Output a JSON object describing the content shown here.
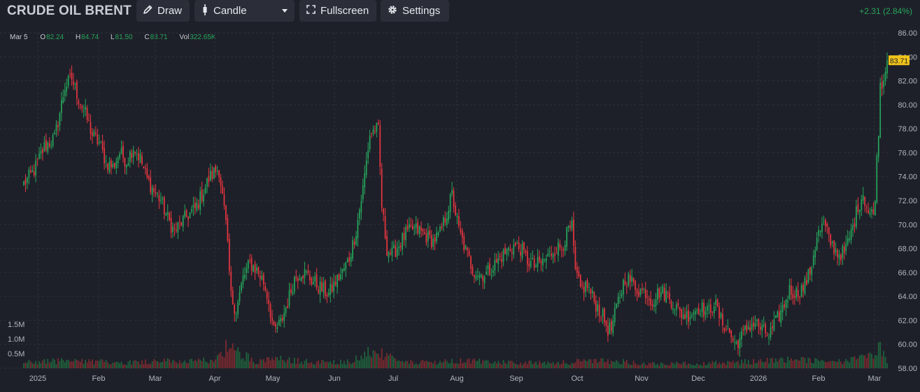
{
  "header": {
    "symbol": "CRUDE OIL BRENT",
    "draw_label": "Draw",
    "chart_type_label": "Candle",
    "fullscreen_label": "Fullscreen",
    "settings_label": "Settings",
    "change_text": "+2.31 (2.84%)"
  },
  "legend": {
    "date": "Mar 5",
    "o_label": "O",
    "o_value": "82.24",
    "h_label": "H",
    "h_value": "84.74",
    "l_label": "L",
    "l_value": "81.50",
    "c_label": "C",
    "c_value": "83.71",
    "vol_label": "Vol",
    "vol_value": "322.65K"
  },
  "colors": {
    "up": "#26a65b",
    "down": "#e8363f",
    "background": "#1e2029",
    "price_tag": "#f0c419"
  },
  "icons": [
    "pencil-icon",
    "candle-icon",
    "fullscreen-icon",
    "gear-icon",
    "chevron-down-icon"
  ],
  "chart_data": {
    "type": "candlestick",
    "ylim": [
      58,
      86
    ],
    "price_ticks": [
      "86.00",
      "84.00",
      "82.00",
      "80.00",
      "78.00",
      "76.00",
      "74.00",
      "72.00",
      "70.00",
      "68.00",
      "66.00",
      "64.00",
      "62.00",
      "60.00",
      "58.00"
    ],
    "volume_ticks": [
      "1.5M",
      "1.0M",
      "0.5M"
    ],
    "time_labels": [
      "2025",
      "Feb",
      "Mar",
      "Apr",
      "May",
      "Jun",
      "Jul",
      "Aug",
      "Sep",
      "Oct",
      "Nov",
      "Dec",
      "2026",
      "Feb",
      "Mar"
    ],
    "last_price": "83.71",
    "close_anchors": [
      [
        0,
        73.4
      ],
      [
        6,
        74.5
      ],
      [
        12,
        76.5
      ],
      [
        18,
        77.2
      ],
      [
        24,
        81.5
      ],
      [
        28,
        82.2
      ],
      [
        32,
        80.5
      ],
      [
        36,
        79.2
      ],
      [
        40,
        77.5
      ],
      [
        44,
        76.8
      ],
      [
        48,
        75.2
      ],
      [
        52,
        74.8
      ],
      [
        56,
        76.0
      ],
      [
        60,
        75.3
      ],
      [
        64,
        76.5
      ],
      [
        68,
        75.5
      ],
      [
        72,
        73.8
      ],
      [
        76,
        72.8
      ],
      [
        80,
        72.0
      ],
      [
        84,
        70.5
      ],
      [
        88,
        69.4
      ],
      [
        92,
        70.2
      ],
      [
        96,
        70.8
      ],
      [
        100,
        71.3
      ],
      [
        104,
        72.5
      ],
      [
        108,
        73.8
      ],
      [
        112,
        74.5
      ],
      [
        114,
        74.6
      ],
      [
        118,
        70.0
      ],
      [
        121,
        64.0
      ],
      [
        124,
        62.8
      ],
      [
        128,
        65.5
      ],
      [
        132,
        66.8
      ],
      [
        136,
        66.2
      ],
      [
        140,
        65.2
      ],
      [
        143,
        63.6
      ],
      [
        146,
        61.0
      ],
      [
        150,
        61.8
      ],
      [
        154,
        63.5
      ],
      [
        158,
        65.5
      ],
      [
        162,
        66.1
      ],
      [
        166,
        65.7
      ],
      [
        170,
        65.1
      ],
      [
        174,
        64.6
      ],
      [
        178,
        64.2
      ],
      [
        182,
        65.2
      ],
      [
        186,
        66.0
      ],
      [
        190,
        67.2
      ],
      [
        194,
        69.5
      ],
      [
        198,
        73.0
      ],
      [
        202,
        77.5
      ],
      [
        205,
        78.0
      ],
      [
        207,
        77.8
      ],
      [
        209,
        71.5
      ],
      [
        212,
        68.0
      ],
      [
        215,
        67.5
      ],
      [
        219,
        68.3
      ],
      [
        223,
        69.2
      ],
      [
        227,
        69.6
      ],
      [
        231,
        69.5
      ],
      [
        235,
        69.0
      ],
      [
        239,
        68.6
      ],
      [
        243,
        69.2
      ],
      [
        247,
        71.0
      ],
      [
        250,
        72.5
      ],
      [
        254,
        69.5
      ],
      [
        258,
        67.8
      ],
      [
        262,
        66.3
      ],
      [
        266,
        65.8
      ],
      [
        270,
        65.9
      ],
      [
        274,
        66.5
      ],
      [
        278,
        67.2
      ],
      [
        282,
        67.8
      ],
      [
        286,
        68.2
      ],
      [
        290,
        68.0
      ],
      [
        294,
        67.0
      ],
      [
        298,
        66.5
      ],
      [
        302,
        66.8
      ],
      [
        306,
        67.3
      ],
      [
        310,
        68.0
      ],
      [
        314,
        68.1
      ],
      [
        318,
        69.5
      ],
      [
        320,
        69.7
      ],
      [
        322,
        66.0
      ],
      [
        325,
        64.6
      ],
      [
        329,
        64.9
      ],
      [
        333,
        63.6
      ],
      [
        337,
        62.6
      ],
      [
        341,
        61.3
      ],
      [
        343,
        61.2
      ],
      [
        347,
        63.6
      ],
      [
        351,
        65.6
      ],
      [
        355,
        65.2
      ],
      [
        359,
        64.5
      ],
      [
        363,
        64.4
      ],
      [
        367,
        63.6
      ],
      [
        371,
        64.4
      ],
      [
        375,
        64.2
      ],
      [
        379,
        63.5
      ],
      [
        383,
        62.6
      ],
      [
        387,
        62.4
      ],
      [
        391,
        62.8
      ],
      [
        395,
        63.1
      ],
      [
        399,
        62.6
      ],
      [
        403,
        63.5
      ],
      [
        407,
        62.0
      ],
      [
        411,
        61.3
      ],
      [
        415,
        60.0
      ],
      [
        419,
        60.6
      ],
      [
        423,
        61.5
      ],
      [
        427,
        61.8
      ],
      [
        431,
        61.2
      ],
      [
        435,
        60.7
      ],
      [
        439,
        61.8
      ],
      [
        443,
        63.0
      ],
      [
        447,
        64.5
      ],
      [
        451,
        64.3
      ],
      [
        455,
        64.7
      ],
      [
        459,
        66.0
      ],
      [
        463,
        69.0
      ],
      [
        467,
        70.0
      ],
      [
        471,
        68.5
      ],
      [
        475,
        67.6
      ],
      [
        479,
        67.6
      ],
      [
        483,
        69.3
      ],
      [
        487,
        71.5
      ],
      [
        490,
        72.6
      ],
      [
        493,
        71.0
      ],
      [
        496,
        70.8
      ],
      [
        497,
        72.6
      ],
      [
        499,
        78.0
      ],
      [
        500,
        81.7
      ],
      [
        502,
        82.2
      ],
      [
        504,
        83.71
      ]
    ],
    "volume_anchors": [
      [
        0,
        0.2
      ],
      [
        20,
        0.25
      ],
      [
        40,
        0.22
      ],
      [
        60,
        0.2
      ],
      [
        80,
        0.25
      ],
      [
        100,
        0.22
      ],
      [
        112,
        0.3
      ],
      [
        118,
        0.7
      ],
      [
        125,
        0.55
      ],
      [
        135,
        0.25
      ],
      [
        150,
        0.3
      ],
      [
        170,
        0.2
      ],
      [
        190,
        0.22
      ],
      [
        200,
        0.5
      ],
      [
        206,
        0.55
      ],
      [
        220,
        0.2
      ],
      [
        240,
        0.2
      ],
      [
        260,
        0.25
      ],
      [
        280,
        0.2
      ],
      [
        300,
        0.18
      ],
      [
        320,
        0.22
      ],
      [
        340,
        0.25
      ],
      [
        360,
        0.18
      ],
      [
        380,
        0.15
      ],
      [
        400,
        0.17
      ],
      [
        415,
        0.2
      ],
      [
        430,
        0.25
      ],
      [
        445,
        0.3
      ],
      [
        460,
        0.25
      ],
      [
        480,
        0.22
      ],
      [
        490,
        0.35
      ],
      [
        497,
        0.4
      ],
      [
        500,
        0.75
      ],
      [
        504,
        0.3
      ]
    ],
    "candle_count": 505
  }
}
